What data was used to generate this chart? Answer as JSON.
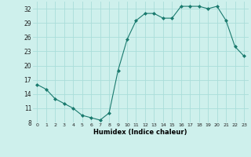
{
  "x": [
    0,
    1,
    2,
    3,
    4,
    5,
    6,
    7,
    8,
    9,
    10,
    11,
    12,
    13,
    14,
    15,
    16,
    17,
    18,
    19,
    20,
    21,
    22,
    23
  ],
  "y": [
    16,
    15,
    13,
    12,
    11,
    9.5,
    9,
    8.5,
    10,
    19,
    25.5,
    29.5,
    31,
    31,
    30,
    30,
    32.5,
    32.5,
    32.5,
    32,
    32.5,
    29.5,
    24,
    22
  ],
  "line_color": "#1a7a6e",
  "marker_color": "#1a7a6e",
  "bg_color": "#cef0ec",
  "grid_color": "#aaddda",
  "xlabel": "Humidex (Indice chaleur)",
  "ylim": [
    8,
    33.5
  ],
  "xlim": [
    -0.5,
    23.5
  ],
  "yticks": [
    8,
    11,
    14,
    17,
    20,
    23,
    26,
    29,
    32
  ],
  "xticks": [
    0,
    1,
    2,
    3,
    4,
    5,
    6,
    7,
    8,
    9,
    10,
    11,
    12,
    13,
    14,
    15,
    16,
    17,
    18,
    19,
    20,
    21,
    22,
    23
  ]
}
